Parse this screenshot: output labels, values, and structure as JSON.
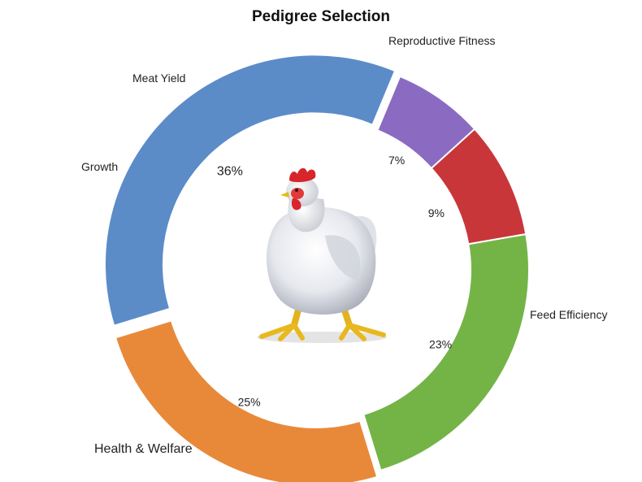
{
  "chart_data": {
    "type": "pie",
    "title": "Pedigree Selection",
    "categories": [
      "Health & Welfare",
      "Growth",
      "Meat Yield",
      "Reproductive Fitness",
      "Feed Efficiency"
    ],
    "values": [
      36,
      7,
      9,
      23,
      25
    ],
    "value_labels": [
      "36%",
      "7%",
      "9%",
      "23%",
      "25%"
    ],
    "colors": [
      "#5b8cc8",
      "#8a6bc1",
      "#c8363a",
      "#74b447",
      "#e8893a"
    ],
    "style": "donut",
    "exploded": [
      "Health & Welfare",
      "Feed Efficiency"
    ],
    "legend": "none",
    "center_image": "chicken-icon"
  }
}
